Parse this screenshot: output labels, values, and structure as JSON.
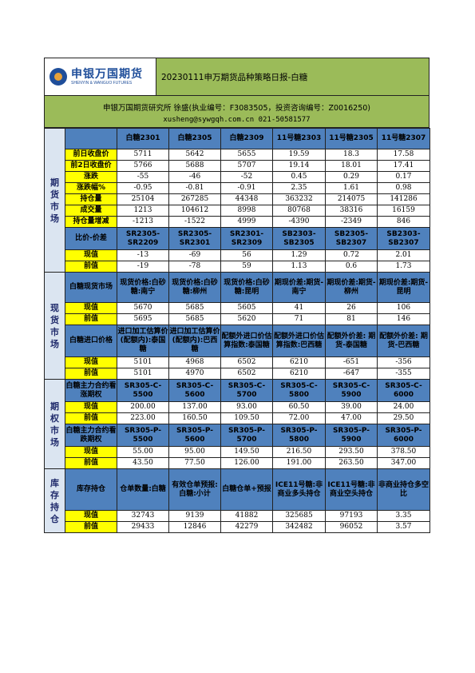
{
  "header": {
    "logo_cn": "申银万国期货",
    "logo_en": "SHENYIN & WANGUO FUTURES",
    "title": "20230111申万期货品种策略日报-白糖"
  },
  "info": {
    "line1": "申银万国期货研究所    徐盛(执业编号：F3083505，投资咨询编号：Z0016250)",
    "line2": "xusheng@sywgqh.com.cn 021-50581577"
  },
  "futures": {
    "section": "期货市场",
    "headers": [
      "白糖2301",
      "白糖2305",
      "白糖2309",
      "11号糖2303",
      "11号糖2305",
      "11号糖2307"
    ],
    "rows": [
      {
        "label": "前日收盘价",
        "values": [
          "5711",
          "5642",
          "5655",
          "19.59",
          "18.3",
          "17.58"
        ]
      },
      {
        "label": "前2日收盘价",
        "values": [
          "5766",
          "5688",
          "5707",
          "19.14",
          "18.01",
          "17.41"
        ]
      },
      {
        "label": "涨跌",
        "values": [
          "-55",
          "-46",
          "-52",
          "0.45",
          "0.29",
          "0.17"
        ]
      },
      {
        "label": "涨跌幅%",
        "values": [
          "-0.95",
          "-0.81",
          "-0.91",
          "2.35",
          "1.61",
          "0.98"
        ]
      },
      {
        "label": "持仓量",
        "values": [
          "25104",
          "267285",
          "44348",
          "363232",
          "214075",
          "141286"
        ]
      },
      {
        "label": "成交量",
        "values": [
          "1213",
          "104612",
          "8998",
          "80768",
          "38316",
          "16159"
        ]
      },
      {
        "label": "持仓量增减",
        "values": [
          "-1213",
          "-1522",
          "4999",
          "-4390",
          "-2349",
          "846"
        ]
      }
    ],
    "spread_label": "比价-价差",
    "spread_headers": [
      "SR2305-SR2209",
      "SR2305-SR2301",
      "SR2301-SR2309",
      "SB2303-SB2305",
      "SB2305-SB2307",
      "SB2303-SB2307"
    ],
    "spread_rows": [
      {
        "label": "现值",
        "values": [
          "-13",
          "-69",
          "56",
          "1.29",
          "0.72",
          "2.01"
        ]
      },
      {
        "label": "前值",
        "values": [
          "-19",
          "-78",
          "59",
          "1.13",
          "0.6",
          "1.73"
        ]
      }
    ]
  },
  "spot": {
    "section": "现货市场",
    "label1": "白糖现货市场",
    "headers1": [
      "现货价格:白砂糖:南宁",
      "现货价格:白砂糖:柳州",
      "现货价格:白砂糖:昆明",
      "期现价差:期货-南宁",
      "期现价差:期货-柳州",
      "期现价差:期货-昆明"
    ],
    "rows1": [
      {
        "label": "现值",
        "values": [
          "5670",
          "5685",
          "5605",
          "41",
          "26",
          "106"
        ]
      },
      {
        "label": "前值",
        "values": [
          "5695",
          "5685",
          "5620",
          "71",
          "81",
          "146"
        ]
      }
    ],
    "label2": "白糖进口价格",
    "headers2": [
      "进口加工估算价(配额内):泰国糖",
      "进口加工估算价(配额内):巴西糖",
      "配额外进口价估算指数:泰国糖",
      "配额外进口价估算指数:巴西糖",
      "配额外价差: 期货-泰国糖",
      "配额外价差: 期货-巴西糖"
    ],
    "rows2": [
      {
        "label": "现值",
        "values": [
          "5101",
          "4968",
          "6502",
          "6210",
          "-651",
          "-356"
        ]
      },
      {
        "label": "前值",
        "values": [
          "5101",
          "4970",
          "6502",
          "6210",
          "-647",
          "-355"
        ]
      }
    ]
  },
  "options": {
    "section": "期权市场",
    "label1": "白糖主力合约看涨期权",
    "headers1": [
      "SR305-C-5500",
      "SR305-C-5600",
      "SR305-C-5700",
      "SR305-C-5800",
      "SR305-C-5900",
      "SR305-C-6000"
    ],
    "rows1": [
      {
        "label": "现值",
        "values": [
          "200.00",
          "137.00",
          "93.00",
          "60.50",
          "39.00",
          "24.00"
        ]
      },
      {
        "label": "前值",
        "values": [
          "223.00",
          "160.50",
          "109.50",
          "72.00",
          "47.00",
          "29.50"
        ]
      }
    ],
    "label2": "白糖主力合约看跌期权",
    "headers2": [
      "SR305-P-5500",
      "SR305-P-5600",
      "SR305-P-5700",
      "SR305-P-5800",
      "SR305-P-5900",
      "SR305-P-6000"
    ],
    "rows2": [
      {
        "label": "现值",
        "values": [
          "55.00",
          "95.00",
          "149.50",
          "216.50",
          "293.50",
          "378.50"
        ]
      },
      {
        "label": "前值",
        "values": [
          "43.50",
          "77.50",
          "126.00",
          "191.00",
          "263.50",
          "347.00"
        ]
      }
    ]
  },
  "inventory": {
    "section": "库存持仓",
    "label": "库存持仓",
    "headers": [
      "仓单数量:白糖",
      "有效仓单预报:白糖:小计",
      "白糖仓单+预报",
      "ICE11号糖:非商业多头持仓",
      "ICE11号糖:非商业空头持仓",
      "非商业持仓多空比"
    ],
    "rows": [
      {
        "label": "现值",
        "values": [
          "32743",
          "9139",
          "41882",
          "325685",
          "97193",
          "3.35"
        ]
      },
      {
        "label": "前值",
        "values": [
          "29433",
          "12846",
          "42279",
          "342482",
          "96052",
          "3.57"
        ]
      }
    ]
  }
}
